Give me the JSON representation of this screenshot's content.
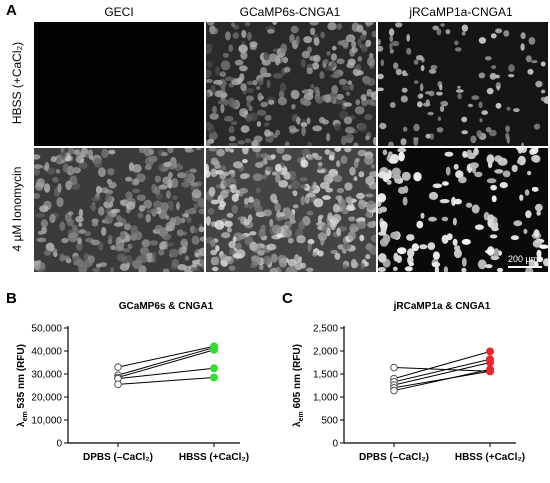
{
  "panel_a": {
    "letter": "A",
    "columns": [
      "GECI",
      "GCaMP6s-CNGA1",
      "jRCaMP1a-CNGA1"
    ],
    "rows": [
      "HBSS (+CaCl₂)",
      "4 µM Ionomycin"
    ],
    "scale_bar": "200 µm"
  },
  "panel_b": {
    "letter": "B"
  },
  "panel_c": {
    "letter": "C"
  },
  "chart_data": [
    {
      "type": "scatter",
      "title": "GCaMP6s & CNGA1",
      "ylabel_main": "λ",
      "ylabel_sub": "em",
      "ylabel_rest": " 535 nm (RFU)",
      "categories": [
        "DPBS (–CaCl₂)",
        "HBSS (+CaCl₂)"
      ],
      "ylim": [
        0,
        50000
      ],
      "yticks": [
        "0",
        "10,000",
        "20,000",
        "30,000",
        "40,000",
        "50,000"
      ],
      "ytick_values": [
        0,
        10000,
        20000,
        30000,
        40000,
        50000
      ],
      "pairs": [
        [
          33000,
          42000
        ],
        [
          29500,
          41500
        ],
        [
          28500,
          40500
        ],
        [
          28000,
          32500
        ],
        [
          25500,
          28500
        ]
      ],
      "after_color": "#33dd33"
    },
    {
      "type": "scatter",
      "title": "jRCaMP1a & CNGA1",
      "ylabel_main": "λ",
      "ylabel_sub": "em",
      "ylabel_rest": " 605 nm (RFU)",
      "categories": [
        "DPBS (–CaCl₂)",
        "HBSS (+CaCl₂)"
      ],
      "ylim": [
        0,
        2500
      ],
      "yticks": [
        "0",
        "500",
        "1,000",
        "1,500",
        "2,000",
        "2,500"
      ],
      "ytick_values": [
        0,
        500,
        1000,
        1500,
        2000,
        2500
      ],
      "pairs": [
        [
          1640,
          1560
        ],
        [
          1400,
          1990
        ],
        [
          1330,
          1820
        ],
        [
          1260,
          1750
        ],
        [
          1200,
          1560
        ],
        [
          1140,
          1600
        ]
      ],
      "after_color": "#e8262e"
    }
  ]
}
